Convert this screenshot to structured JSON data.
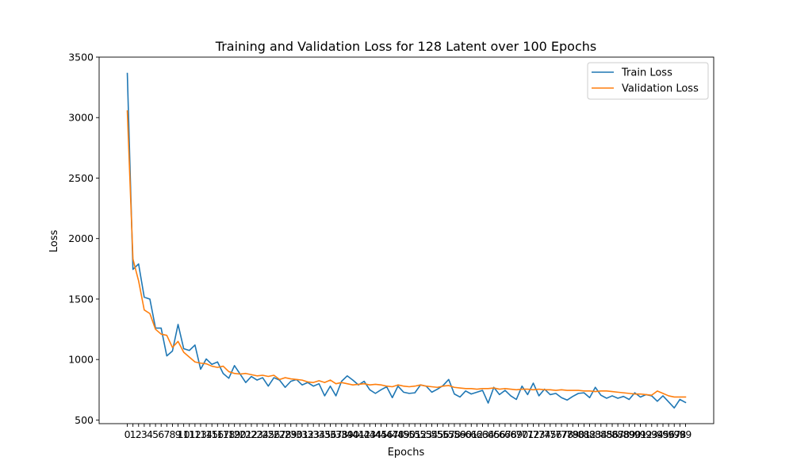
{
  "chart_data": {
    "type": "line",
    "title": "Training and Validation Loss for 128 Latent over 100 Epochs",
    "xlabel": "Epochs",
    "ylabel": "Loss",
    "x": [
      0,
      1,
      2,
      3,
      4,
      5,
      6,
      7,
      8,
      9,
      10,
      11,
      12,
      13,
      14,
      15,
      16,
      17,
      18,
      19,
      20,
      21,
      22,
      23,
      24,
      25,
      26,
      27,
      28,
      29,
      30,
      31,
      32,
      33,
      34,
      35,
      36,
      37,
      38,
      39,
      40,
      41,
      42,
      43,
      44,
      45,
      46,
      47,
      48,
      49,
      50,
      51,
      52,
      53,
      54,
      55,
      56,
      57,
      58,
      59,
      60,
      61,
      62,
      63,
      64,
      65,
      66,
      67,
      68,
      69,
      70,
      71,
      72,
      73,
      74,
      75,
      76,
      77,
      78,
      79,
      80,
      81,
      82,
      83,
      84,
      85,
      86,
      87,
      88,
      89,
      90,
      91,
      92,
      93,
      94,
      95,
      96,
      97,
      98,
      99
    ],
    "xlim": [
      -5,
      104
    ],
    "ylim": [
      470,
      3500
    ],
    "yticks": [
      500,
      1000,
      1500,
      2000,
      2500,
      3000,
      3500
    ],
    "grid": false,
    "legend_position": "top-right",
    "series": [
      {
        "name": "Train Loss",
        "color": "#1f77b4",
        "values": [
          3365,
          1745,
          1790,
          1515,
          1500,
          1260,
          1260,
          1030,
          1070,
          1290,
          1090,
          1075,
          1120,
          920,
          1005,
          960,
          980,
          885,
          845,
          950,
          880,
          810,
          860,
          830,
          850,
          780,
          850,
          830,
          770,
          820,
          835,
          790,
          810,
          780,
          800,
          700,
          780,
          700,
          820,
          865,
          830,
          790,
          820,
          750,
          720,
          750,
          775,
          685,
          780,
          730,
          720,
          725,
          790,
          780,
          730,
          755,
          785,
          835,
          715,
          690,
          740,
          715,
          730,
          745,
          640,
          770,
          710,
          745,
          700,
          670,
          780,
          710,
          805,
          700,
          755,
          710,
          720,
          685,
          665,
          695,
          720,
          725,
          685,
          770,
          705,
          680,
          700,
          680,
          695,
          670,
          725,
          690,
          710,
          700,
          655,
          700,
          650,
          600,
          670,
          645
        ]
      },
      {
        "name": "Validation Loss",
        "color": "#ff7f0e",
        "values": [
          3055,
          1830,
          1650,
          1410,
          1380,
          1250,
          1210,
          1200,
          1100,
          1150,
          1060,
          1020,
          980,
          970,
          965,
          945,
          935,
          945,
          900,
          885,
          880,
          885,
          875,
          865,
          870,
          860,
          870,
          835,
          850,
          840,
          835,
          830,
          815,
          810,
          825,
          810,
          830,
          800,
          810,
          800,
          790,
          795,
          800,
          790,
          795,
          790,
          780,
          775,
          790,
          780,
          775,
          780,
          790,
          780,
          775,
          770,
          780,
          785,
          770,
          765,
          760,
          760,
          755,
          760,
          760,
          765,
          755,
          760,
          755,
          750,
          755,
          755,
          750,
          755,
          750,
          750,
          745,
          750,
          745,
          745,
          745,
          740,
          740,
          735,
          740,
          740,
          735,
          730,
          725,
          720,
          715,
          715,
          710,
          705,
          740,
          720,
          700,
          690,
          690,
          690
        ]
      }
    ]
  }
}
